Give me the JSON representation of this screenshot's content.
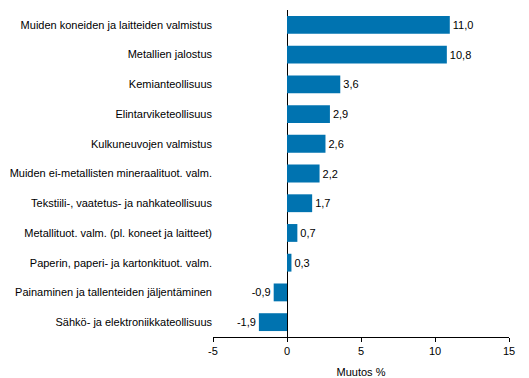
{
  "chart_data": {
    "type": "bar",
    "orientation": "horizontal",
    "categories": [
      "Muiden koneiden ja laitteiden valmistus",
      "Metallien jalostus",
      "Kemianteollisuus",
      "Elintarviketeollisuus",
      "Kulkuneuvojen valmistus",
      "Muiden ei-metallisten mineraalituot. valm.",
      "Tekstiili-, vaatetus- ja nahkateollisuus",
      "Metallituot. valm. (pl. koneet ja laitteet)",
      "Paperin, paperi- ja kartonkituot. valm.",
      "Painaminen ja tallenteiden jäljentäminen",
      "Sähkö- ja elektroniikkateollisuus"
    ],
    "values": [
      11.0,
      10.8,
      3.6,
      2.9,
      2.6,
      2.2,
      1.7,
      0.7,
      0.3,
      -0.9,
      -1.9
    ],
    "value_labels": [
      "11,0",
      "10,8",
      "3,6",
      "2,9",
      "2,6",
      "2,2",
      "1,7",
      "0,7",
      "0,3",
      "-0,9",
      "-1,9"
    ],
    "data_labels": true,
    "color": "#0073b0",
    "xlabel": "Muutos %",
    "xlim": [
      -5,
      15
    ],
    "xticks": [
      -5,
      0,
      5,
      10,
      15
    ],
    "grid": false
  }
}
